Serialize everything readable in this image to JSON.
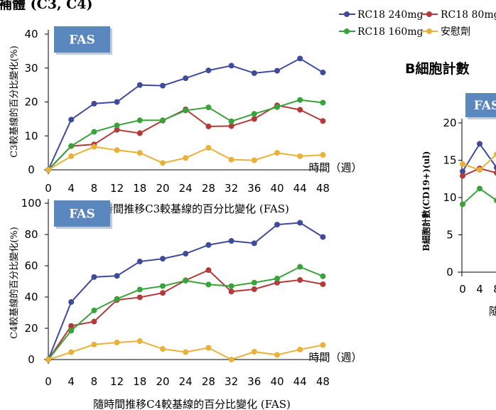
{
  "top_title": "補體 (C3, C4)",
  "legend": [
    {
      "label": "RC18 240mg",
      "color": "#3f4a9b"
    },
    {
      "label": "RC18 80mg",
      "color": "#b23a3a"
    },
    {
      "label": "RC18 160mg",
      "color": "#3aa23a"
    },
    {
      "label": "安慰劑",
      "color": "#e8b23a"
    }
  ],
  "bcell_title": "B細胞計數",
  "chart_data": [
    {
      "type": "line",
      "badge": "FAS",
      "ylabel": "C3較基線的百分比變化(%)",
      "xlabel_inline": "時間（週）",
      "caption": "隨時間推移C3較基線的百分比變化 (FAS)",
      "x": [
        0,
        4,
        8,
        12,
        18,
        20,
        24,
        28,
        32,
        36,
        40,
        44,
        48
      ],
      "ylim": [
        0,
        40
      ],
      "yticks": [
        0,
        10,
        20,
        30,
        40
      ],
      "series": [
        {
          "name": "RC18 240mg",
          "color": "#3f4a9b",
          "values": [
            0,
            14.8,
            19.5,
            20.0,
            25.0,
            24.8,
            27.0,
            29.3,
            30.7,
            28.5,
            29.2,
            32.8,
            28.7
          ]
        },
        {
          "name": "RC18 80mg",
          "color": "#b23a3a",
          "values": [
            0,
            7.0,
            7.5,
            11.8,
            10.8,
            14.5,
            17.8,
            12.8,
            12.9,
            15.0,
            19.0,
            17.7,
            14.4
          ]
        },
        {
          "name": "RC18 160mg",
          "color": "#3aa23a",
          "values": [
            0,
            7.0,
            11.2,
            13.1,
            14.6,
            14.6,
            17.5,
            18.4,
            14.3,
            16.5,
            18.5,
            20.6,
            19.8
          ]
        },
        {
          "name": "安慰劑",
          "color": "#e8b23a",
          "values": [
            0,
            4.0,
            6.8,
            5.8,
            5.0,
            2.0,
            3.5,
            6.5,
            3.0,
            2.8,
            5.0,
            4.0,
            4.4
          ]
        }
      ]
    },
    {
      "type": "line",
      "badge": "FAS",
      "ylabel": "C4較基線的百分比變化(%)",
      "xlabel_inline": "時間（週）",
      "caption": "隨時間推移C4較基線的百分比變化 (FAS)",
      "x": [
        0,
        4,
        8,
        12,
        18,
        20,
        24,
        28,
        32,
        36,
        40,
        44,
        48
      ],
      "ylim": [
        0,
        100
      ],
      "yticks": [
        0,
        20,
        40,
        60,
        80,
        100
      ],
      "series": [
        {
          "name": "RC18 240mg",
          "color": "#3f4a9b",
          "values": [
            0,
            36.8,
            52.8,
            53.5,
            62.7,
            64.5,
            67.7,
            73.3,
            75.9,
            74.4,
            86.3,
            87.5,
            78.4
          ]
        },
        {
          "name": "RC18 80mg",
          "color": "#b23a3a",
          "values": [
            0,
            21.5,
            24.3,
            38.1,
            39.8,
            42.6,
            50.7,
            57.2,
            43.5,
            45.0,
            49.2,
            50.9,
            48.2
          ]
        },
        {
          "name": "RC18 160mg",
          "color": "#3aa23a",
          "values": [
            0,
            18.5,
            31.4,
            38.8,
            44.8,
            47.0,
            50.5,
            48.0,
            47.0,
            49.2,
            51.8,
            59.3,
            53.3
          ]
        },
        {
          "name": "安慰劑",
          "color": "#e8b23a",
          "values": [
            0,
            4.7,
            9.6,
            10.9,
            11.8,
            6.8,
            4.8,
            7.5,
            0.0,
            5.0,
            3.0,
            6.4,
            9.3
          ]
        }
      ]
    },
    {
      "type": "line",
      "badge": "FAS",
      "ylabel": "B細胞計數(CD19+)(ul)",
      "x": [
        0,
        4,
        8
      ],
      "xticks_visible": [
        "0",
        "4",
        "8"
      ],
      "ylim": [
        0,
        20
      ],
      "yticks": [
        0,
        5,
        10,
        15,
        20
      ],
      "bottom_fragment": "隨",
      "series": [
        {
          "name": "RC18 240mg",
          "color": "#3f4a9b",
          "values": [
            13.5,
            17.2,
            14.0
          ]
        },
        {
          "name": "RC18 80mg",
          "color": "#b23a3a",
          "values": [
            12.9,
            13.9,
            13.3
          ]
        },
        {
          "name": "RC18 160mg",
          "color": "#3aa23a",
          "values": [
            9.1,
            11.2,
            9.6
          ]
        },
        {
          "name": "安慰劑",
          "color": "#e8b23a",
          "values": [
            14.5,
            13.7,
            15.8
          ]
        }
      ]
    }
  ]
}
